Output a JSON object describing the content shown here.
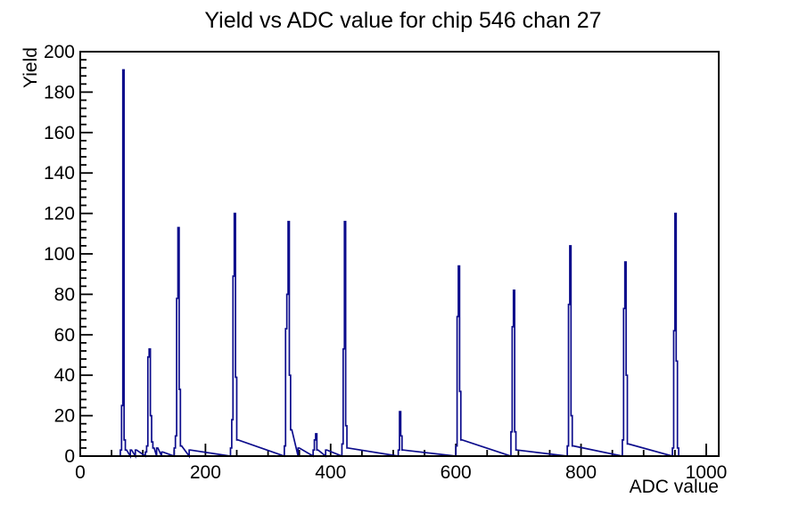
{
  "page": {
    "background": "#ffffff"
  },
  "chart_data": {
    "type": "bar",
    "title": "Yield vs ADC value for chip 546 chan 27",
    "xlabel": "ADC value",
    "ylabel": "Yield",
    "xlim": [
      0,
      1020
    ],
    "ylim": [
      0,
      200
    ],
    "x_major_ticks": [
      0,
      200,
      400,
      600,
      800,
      1000
    ],
    "x_minor_step": 50,
    "y_major_step": 20,
    "y_minor_step": 4,
    "grid": false,
    "legend": false,
    "bin_width": 2,
    "line_color": "#0c0c8c",
    "axis_color": "#000000",
    "bins": [
      [
        64,
        3
      ],
      [
        66,
        25
      ],
      [
        68,
        191
      ],
      [
        70,
        8
      ],
      [
        72,
        3
      ],
      [
        80,
        3
      ],
      [
        88,
        3
      ],
      [
        104,
        2
      ],
      [
        106,
        5
      ],
      [
        108,
        49
      ],
      [
        110,
        53
      ],
      [
        112,
        20
      ],
      [
        114,
        7
      ],
      [
        116,
        4
      ],
      [
        122,
        4
      ],
      [
        130,
        2
      ],
      [
        150,
        4
      ],
      [
        152,
        10
      ],
      [
        154,
        78
      ],
      [
        156,
        113
      ],
      [
        158,
        33
      ],
      [
        160,
        5
      ],
      [
        174,
        3
      ],
      [
        240,
        4
      ],
      [
        242,
        18
      ],
      [
        244,
        89
      ],
      [
        246,
        120
      ],
      [
        248,
        39
      ],
      [
        250,
        8
      ],
      [
        326,
        5
      ],
      [
        328,
        63
      ],
      [
        330,
        80
      ],
      [
        332,
        116
      ],
      [
        334,
        40
      ],
      [
        336,
        13
      ],
      [
        348,
        4
      ],
      [
        372,
        3
      ],
      [
        374,
        8
      ],
      [
        376,
        11
      ],
      [
        378,
        3
      ],
      [
        392,
        3
      ],
      [
        418,
        6
      ],
      [
        420,
        53
      ],
      [
        422,
        116
      ],
      [
        424,
        15
      ],
      [
        426,
        4
      ],
      [
        508,
        3
      ],
      [
        510,
        22
      ],
      [
        512,
        10
      ],
      [
        514,
        3
      ],
      [
        600,
        5
      ],
      [
        602,
        69
      ],
      [
        604,
        94
      ],
      [
        606,
        32
      ],
      [
        608,
        8
      ],
      [
        688,
        12
      ],
      [
        690,
        64
      ],
      [
        692,
        82
      ],
      [
        694,
        12
      ],
      [
        696,
        3
      ],
      [
        778,
        5
      ],
      [
        780,
        75
      ],
      [
        782,
        104
      ],
      [
        784,
        20
      ],
      [
        786,
        5
      ],
      [
        866,
        8
      ],
      [
        868,
        73
      ],
      [
        870,
        96
      ],
      [
        872,
        40
      ],
      [
        874,
        6
      ],
      [
        946,
        4
      ],
      [
        948,
        62
      ],
      [
        950,
        120
      ],
      [
        952,
        47
      ],
      [
        954,
        4
      ]
    ]
  }
}
